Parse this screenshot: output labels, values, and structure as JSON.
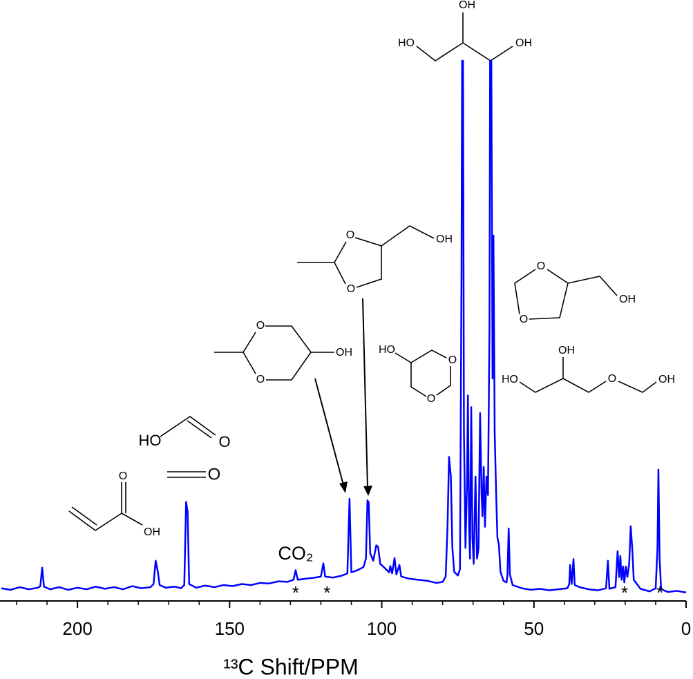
{
  "chart_data": {
    "type": "line",
    "color": "#0000ff",
    "xlabel": "¹³C Shift/PPM",
    "xlim": [
      225,
      0
    ],
    "ylim": [
      -2,
      100
    ],
    "xticks": [
      200,
      150,
      100,
      50,
      0
    ],
    "xminorticks": [
      220,
      210,
      190,
      180,
      170,
      160,
      140,
      130,
      120,
      110,
      90,
      80,
      70,
      60,
      40,
      30,
      20,
      10
    ],
    "annotations": [
      {
        "text": "CO₂",
        "x": 128.3
      },
      {
        "text": "*",
        "x": 128.3
      },
      {
        "text": "*",
        "x": 118
      },
      {
        "text": "*",
        "x": 20.2
      },
      {
        "text": "*",
        "x": 8.6
      }
    ],
    "x": [
      225,
      222,
      219,
      216,
      213,
      212.2,
      211.6,
      211,
      209,
      206,
      203,
      200,
      197,
      194,
      191,
      188,
      185,
      182,
      179,
      176,
      175,
      174.3,
      173.6,
      173,
      171,
      168,
      166,
      164.9,
      164.3,
      163.8,
      163.3,
      161,
      158,
      155,
      152,
      149,
      146,
      143,
      140,
      137,
      134,
      131,
      129,
      128.3,
      127.6,
      125,
      122,
      120,
      119.2,
      118.6,
      116,
      113,
      111.3,
      110.6,
      110,
      108,
      106,
      105.2,
      104.7,
      104.3,
      103.8,
      102.8,
      101.8,
      101.2,
      100.5,
      99,
      97.6,
      97.2,
      96.6,
      95.8,
      95.2,
      94.2,
      93.6,
      91,
      88,
      85,
      82,
      80,
      79,
      78.4,
      77.9,
      77.3,
      76.8,
      76.2,
      75,
      74.3,
      73.8,
      73.6,
      73.3,
      73,
      72.5,
      72,
      71.7,
      71.3,
      71,
      70.6,
      70.2,
      69.8,
      69.2,
      68.7,
      68.2,
      67.7,
      67.2,
      66.9,
      66.5,
      66.1,
      65.6,
      65.1,
      64.6,
      64.4,
      64,
      63.6,
      63.3,
      62.9,
      62.4,
      62,
      61.5,
      61,
      60,
      59,
      58.7,
      58.3,
      57.9,
      57,
      54,
      51,
      48,
      45,
      42,
      39,
      38.4,
      38.1,
      37.6,
      37,
      36.6,
      35,
      32,
      29,
      26.3,
      25.7,
      25.2,
      23.2,
      22.5,
      22,
      21.6,
      21.2,
      20.7,
      20.3,
      19.8,
      19.3,
      18.7,
      18.2,
      17.7,
      17.2,
      15,
      12,
      10,
      9.4,
      9.1,
      8.7,
      8.2,
      6,
      3,
      0
    ],
    "values": [
      0.4,
      0.1,
      0.6,
      0.2,
      0.5,
      0.8,
      4.3,
      0.7,
      0.2,
      0.6,
      0.1,
      0.5,
      0.2,
      0.7,
      0.3,
      0.6,
      0.2,
      0.8,
      0.4,
      0.6,
      1.2,
      5.6,
      3.6,
      1,
      0.5,
      0.7,
      0.4,
      1,
      16.7,
      14.8,
      1.2,
      0.5,
      0.9,
      0.6,
      1,
      0.8,
      1.2,
      1,
      1.4,
      1.3,
      1.7,
      1.6,
      2,
      3.8,
      2,
      2.2,
      2.4,
      2.6,
      5.1,
      2.6,
      2.4,
      2.8,
      3.2,
      17.3,
      3.4,
      3.8,
      4.4,
      6,
      17,
      16.6,
      7,
      5.6,
      8.5,
      8.2,
      5,
      4.2,
      3.4,
      4.6,
      3.2,
      6.1,
      3,
      4.8,
      2.6,
      2.2,
      2,
      1.8,
      1.4,
      1.6,
      2.6,
      12,
      25.2,
      21.5,
      8,
      3.5,
      2.8,
      4,
      60,
      100,
      100,
      30,
      8,
      20,
      36.8,
      12,
      6,
      34.6,
      10,
      5,
      21.5,
      6,
      8,
      33.5,
      18,
      14,
      23.3,
      12,
      21.5,
      18,
      50,
      100,
      100,
      40,
      67,
      30,
      17.9,
      10,
      8.5,
      3.5,
      1.8,
      1.5,
      3,
      11.7,
      3,
      1,
      0.4,
      0.1,
      0.3,
      0,
      0.2,
      0.4,
      1.2,
      4.8,
      1.2,
      5.9,
      1,
      0.6,
      0.2,
      0,
      0.4,
      5.6,
      0.3,
      0.6,
      7.4,
      2.5,
      6.5,
      2,
      4.5,
      1.5,
      4.5,
      2.5,
      5,
      12.1,
      8,
      2,
      0.3,
      -0.2,
      0.4,
      8,
      22.8,
      6,
      0.2,
      -0.3,
      -0.1,
      -0.4
    ]
  },
  "structures": [
    {
      "labels": [
        "OH",
        "HO",
        "OH"
      ]
    },
    {
      "labels": [
        "O",
        "O",
        "OH"
      ]
    },
    {
      "labels": [
        "O",
        "O",
        "OH"
      ]
    },
    {
      "labels": [
        "O",
        "O",
        "OH"
      ]
    },
    {
      "labels": [
        "HO",
        "O",
        "O"
      ]
    },
    {
      "labels": [
        "OH",
        "HO",
        "O",
        "OH"
      ]
    },
    {
      "labels": [
        "HO",
        "O"
      ]
    },
    {
      "labels": [
        "O"
      ]
    },
    {
      "labels": [
        "O",
        "OH"
      ]
    }
  ]
}
